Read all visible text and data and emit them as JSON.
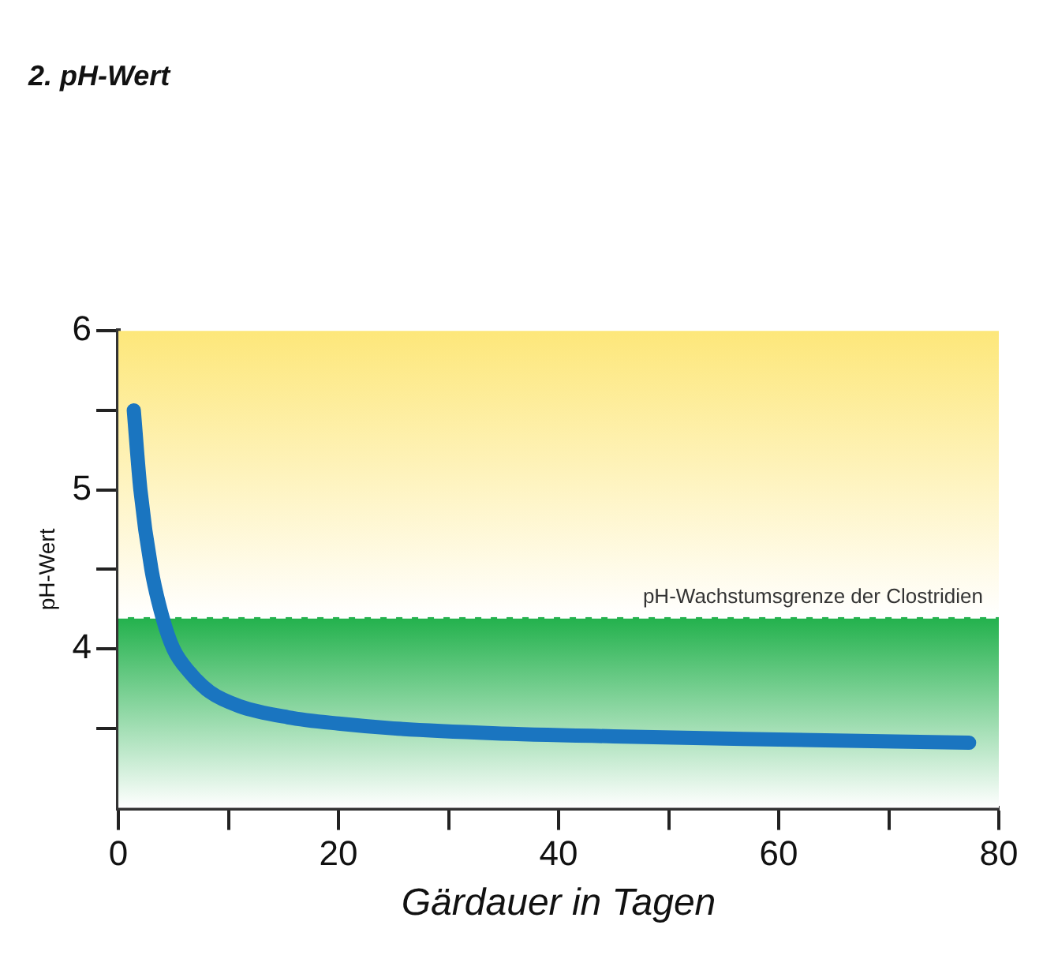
{
  "chart_data": {
    "type": "line",
    "title": "2. pH-Wert",
    "xlabel": "Gärdauer in Tagen",
    "ylabel": "pH-Wert",
    "series": [
      {
        "color": "#1a75c0",
        "x": [
          1.4,
          2,
          3,
          4,
          5,
          6.5,
          8.3,
          11,
          15.4,
          20,
          25,
          34,
          45,
          60,
          77.3
        ],
        "values": [
          5.5,
          5.0,
          4.5,
          4.2,
          4.0,
          3.85,
          3.73,
          3.64,
          3.57,
          3.53,
          3.5,
          3.47,
          3.45,
          3.43,
          3.41
        ]
      }
    ],
    "xlim": [
      0,
      80
    ],
    "xticks": [
      0,
      {
        "value": 10,
        "label": null
      },
      20,
      {
        "value": 30,
        "label": null
      },
      40,
      {
        "value": 50,
        "label": null
      },
      60,
      {
        "value": 70,
        "label": null
      },
      80
    ],
    "ylim": [
      3,
      6
    ],
    "yticks": [
      {
        "value": 3.5,
        "label": null
      },
      4,
      {
        "value": 4.5,
        "label": null
      },
      5,
      {
        "value": 5.5,
        "label": null
      },
      6
    ],
    "ref_lines": [
      {
        "axis": "y",
        "value": 4.2,
        "label": "pH-Wachstumsgrenze der Clostridien",
        "line_style": "dashed",
        "color": "#ffffff"
      }
    ],
    "bands": [
      {
        "axis": "y",
        "from": 3,
        "to": 4.2,
        "color": "#22b14c"
      },
      {
        "axis": "y",
        "from": 4.2,
        "to": 6,
        "color": "#fde77a"
      }
    ],
    "grid": false,
    "legend": false,
    "marker": "none",
    "line_style": "solid"
  }
}
